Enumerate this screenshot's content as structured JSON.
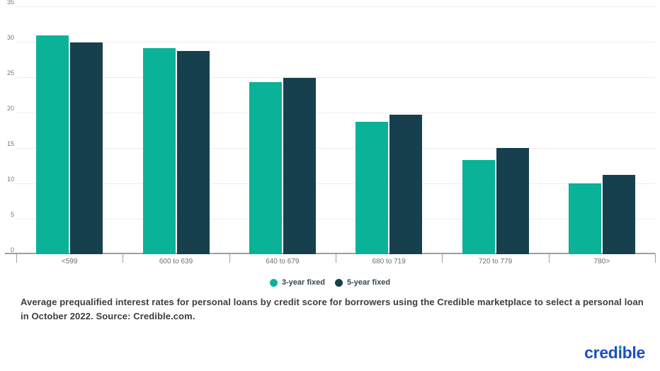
{
  "chart_data": {
    "type": "bar",
    "title": "",
    "categories": [
      "<599",
      "600 to 639",
      "640 to 679",
      "680 to 719",
      "720 to 779",
      "780>"
    ],
    "series": [
      {
        "name": "3-year fixed",
        "color": "#0ab298",
        "values": [
          30.9,
          29.1,
          24.3,
          18.7,
          13.3,
          10.0
        ]
      },
      {
        "name": "5-year fixed",
        "color": "#16404e",
        "values": [
          29.9,
          28.7,
          24.9,
          19.7,
          15.0,
          11.2
        ]
      }
    ],
    "yticks": [
      0,
      5,
      10,
      15,
      20,
      25,
      30,
      35
    ],
    "ylim": [
      0,
      35
    ],
    "xlabel": "",
    "ylabel": "",
    "grid": "horizontal",
    "legend_position": "bottom-center"
  },
  "caption": "Average prequalified interest rates for personal loans by credit score for borrowers using the Credible marketplace to select a personal loan in October 2022. Source: Credible.com.",
  "logo": {
    "text": "credible",
    "color": "#1c4fc2",
    "dot_color": "#0ab298"
  },
  "colors": {
    "axis": "#9e9e9e",
    "gridline": "#ededed",
    "tick_label": "#767676",
    "caption_text": "#3d3d3d",
    "background": "#ffffff"
  }
}
